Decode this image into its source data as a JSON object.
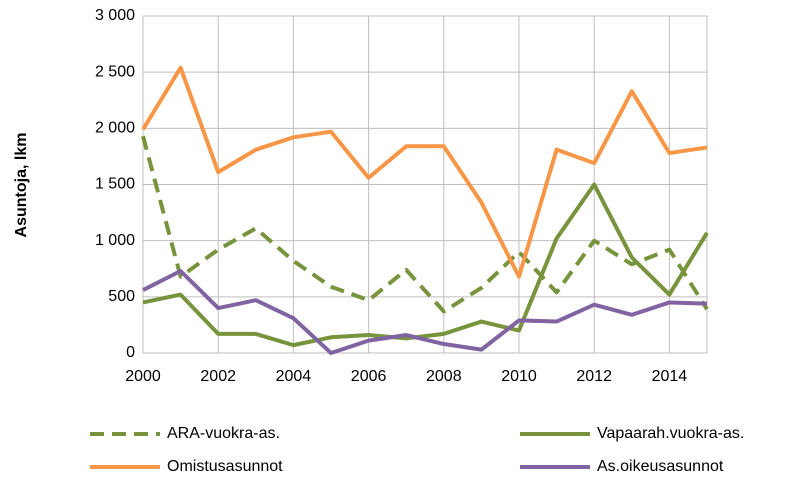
{
  "chart_data": {
    "type": "line",
    "y_label": "Asuntoja, lkm",
    "x": [
      2000,
      2001,
      2002,
      2003,
      2004,
      2005,
      2006,
      2007,
      2008,
      2009,
      2010,
      2011,
      2012,
      2013,
      2014,
      2015
    ],
    "xlim": [
      2000,
      2015
    ],
    "xticks": [
      2000,
      2002,
      2004,
      2006,
      2008,
      2010,
      2012,
      2014
    ],
    "ylim": [
      0,
      3000
    ],
    "yticks": [
      0,
      500,
      {
        "value": 1000,
        "label": "1 000"
      },
      {
        "value": 1500,
        "label": "1 500"
      },
      {
        "value": 2000,
        "label": "2 000"
      },
      {
        "value": 2500,
        "label": "2 500"
      },
      {
        "value": 3000,
        "label": "3 000"
      }
    ],
    "grid": true,
    "legend": "bottom",
    "series": [
      {
        "name": "ARA-vuokra-as.",
        "color": "#77933c",
        "style": "dashed",
        "values": [
          1930,
          680,
          920,
          1110,
          820,
          590,
          470,
          740,
          370,
          580,
          900,
          540,
          1000,
          790,
          920,
          390
        ]
      },
      {
        "name": "Vapaarah.vuokra-as.",
        "color": "#77933c",
        "style": "solid",
        "values": [
          450,
          520,
          170,
          170,
          70,
          140,
          160,
          130,
          170,
          280,
          200,
          1020,
          1500,
          850,
          520,
          1070
        ]
      },
      {
        "name": "Omistusasunnot",
        "color": "#f79646",
        "style": "solid",
        "values": [
          1990,
          2540,
          1610,
          1810,
          1920,
          1970,
          1560,
          1840,
          1840,
          1340,
          680,
          1810,
          1690,
          2330,
          1780,
          1830
        ]
      },
      {
        "name": "As.oikeusasunnot",
        "color": "#8064a2",
        "style": "solid",
        "values": [
          560,
          730,
          400,
          470,
          310,
          0,
          110,
          160,
          80,
          30,
          290,
          280,
          430,
          340,
          450,
          440
        ]
      }
    ]
  }
}
